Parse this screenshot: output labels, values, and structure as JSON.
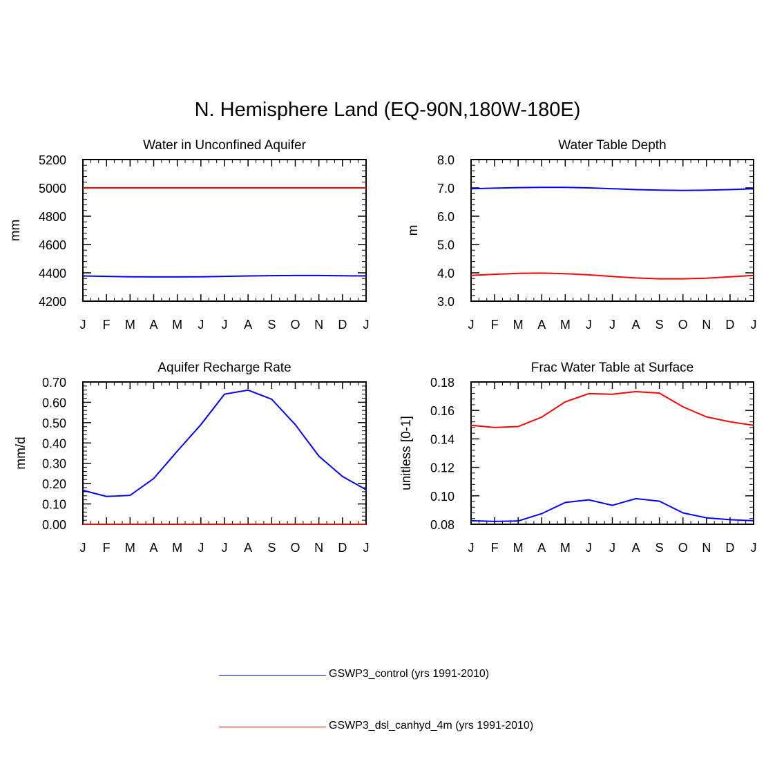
{
  "figure": {
    "title": "N. Hemisphere Land (EQ-90N,180W-180E)"
  },
  "colors": {
    "control": "#0000ff",
    "experiment": "#ff0000",
    "axis": "#000000"
  },
  "legend": [
    {
      "label": "GSWP3_control (yrs 1991-2010)",
      "color": "#0000ff"
    },
    {
      "label": "GSWP3_dsl_canhyd_4m (yrs 1991-2010)",
      "color": "#ff0000"
    }
  ],
  "chart_data": [
    {
      "type": "line",
      "title": "Water in Unconfined Aquifer",
      "ylabel": "mm",
      "xlabel": "",
      "x": [
        "J",
        "F",
        "M",
        "A",
        "M",
        "J",
        "J",
        "A",
        "S",
        "O",
        "N",
        "D",
        "J"
      ],
      "ylim": [
        4200,
        5200
      ],
      "yticks": [
        4200,
        4400,
        4600,
        4800,
        5000,
        5200
      ],
      "ytick_labels": [
        "4200",
        "4400",
        "4600",
        "4800",
        "5000",
        "5200"
      ],
      "series": [
        {
          "color": "#0000ff",
          "values": [
            4378,
            4375,
            4372,
            4371,
            4371,
            4372,
            4375,
            4378,
            4380,
            4381,
            4381,
            4379,
            4378
          ]
        },
        {
          "color": "#ff0000",
          "values": [
            5000,
            5000,
            5000,
            5000,
            5000,
            5000,
            5000,
            5000,
            5000,
            5000,
            5000,
            5000,
            5000
          ]
        }
      ],
      "grid": false
    },
    {
      "type": "line",
      "title": "Water Table Depth",
      "ylabel": "m",
      "xlabel": "",
      "x": [
        "J",
        "F",
        "M",
        "A",
        "M",
        "J",
        "J",
        "A",
        "S",
        "O",
        "N",
        "D",
        "J"
      ],
      "ylim": [
        3.0,
        8.0
      ],
      "yticks": [
        3.0,
        4.0,
        5.0,
        6.0,
        7.0,
        8.0
      ],
      "ytick_labels": [
        "3.0",
        "4.0",
        "5.0",
        "6.0",
        "7.0",
        "8.0"
      ],
      "series": [
        {
          "color": "#0000ff",
          "values": [
            6.97,
            6.99,
            7.01,
            7.02,
            7.02,
            7.0,
            6.97,
            6.94,
            6.92,
            6.91,
            6.92,
            6.94,
            6.97
          ]
        },
        {
          "color": "#ff0000",
          "values": [
            3.91,
            3.95,
            3.98,
            3.99,
            3.97,
            3.93,
            3.87,
            3.82,
            3.79,
            3.79,
            3.81,
            3.86,
            3.91
          ]
        }
      ],
      "grid": false
    },
    {
      "type": "line",
      "title": "Aquifer Recharge Rate",
      "ylabel": "mm/d",
      "xlabel": "",
      "x": [
        "J",
        "F",
        "M",
        "A",
        "M",
        "J",
        "J",
        "A",
        "S",
        "O",
        "N",
        "D",
        "J"
      ],
      "ylim": [
        0.0,
        0.7
      ],
      "yticks": [
        0.0,
        0.1,
        0.2,
        0.3,
        0.4,
        0.5,
        0.6,
        0.7
      ],
      "ytick_labels": [
        "0.00",
        "0.10",
        "0.20",
        "0.30",
        "0.40",
        "0.50",
        "0.60",
        "0.70"
      ],
      "series": [
        {
          "color": "#0000ff",
          "values": [
            0.167,
            0.137,
            0.142,
            0.225,
            0.36,
            0.49,
            0.64,
            0.66,
            0.615,
            0.49,
            0.335,
            0.235,
            0.17
          ]
        },
        {
          "color": "#ff0000",
          "values": [
            0,
            0,
            0,
            0,
            0,
            0,
            0,
            0,
            0,
            0,
            0,
            0,
            0
          ]
        }
      ],
      "grid": false
    },
    {
      "type": "line",
      "title": "Frac Water Table at Surface",
      "ylabel": "unitless [0-1]",
      "xlabel": "",
      "x": [
        "J",
        "F",
        "M",
        "A",
        "M",
        "J",
        "J",
        "A",
        "S",
        "O",
        "N",
        "D",
        "J"
      ],
      "ylim": [
        0.08,
        0.18
      ],
      "yticks": [
        0.08,
        0.1,
        0.12,
        0.14,
        0.16,
        0.18
      ],
      "ytick_labels": [
        "0.08",
        "0.10",
        "0.12",
        "0.14",
        "0.16",
        "0.18"
      ],
      "series": [
        {
          "color": "#0000ff",
          "values": [
            0.0825,
            0.082,
            0.0823,
            0.0875,
            0.0953,
            0.0972,
            0.0933,
            0.098,
            0.0962,
            0.088,
            0.0845,
            0.0832,
            0.0825
          ]
        },
        {
          "color": "#ff0000",
          "values": [
            0.1495,
            0.148,
            0.1487,
            0.1553,
            0.166,
            0.1718,
            0.1714,
            0.1732,
            0.1722,
            0.1625,
            0.1555,
            0.152,
            0.1495
          ]
        }
      ],
      "grid": false
    }
  ]
}
